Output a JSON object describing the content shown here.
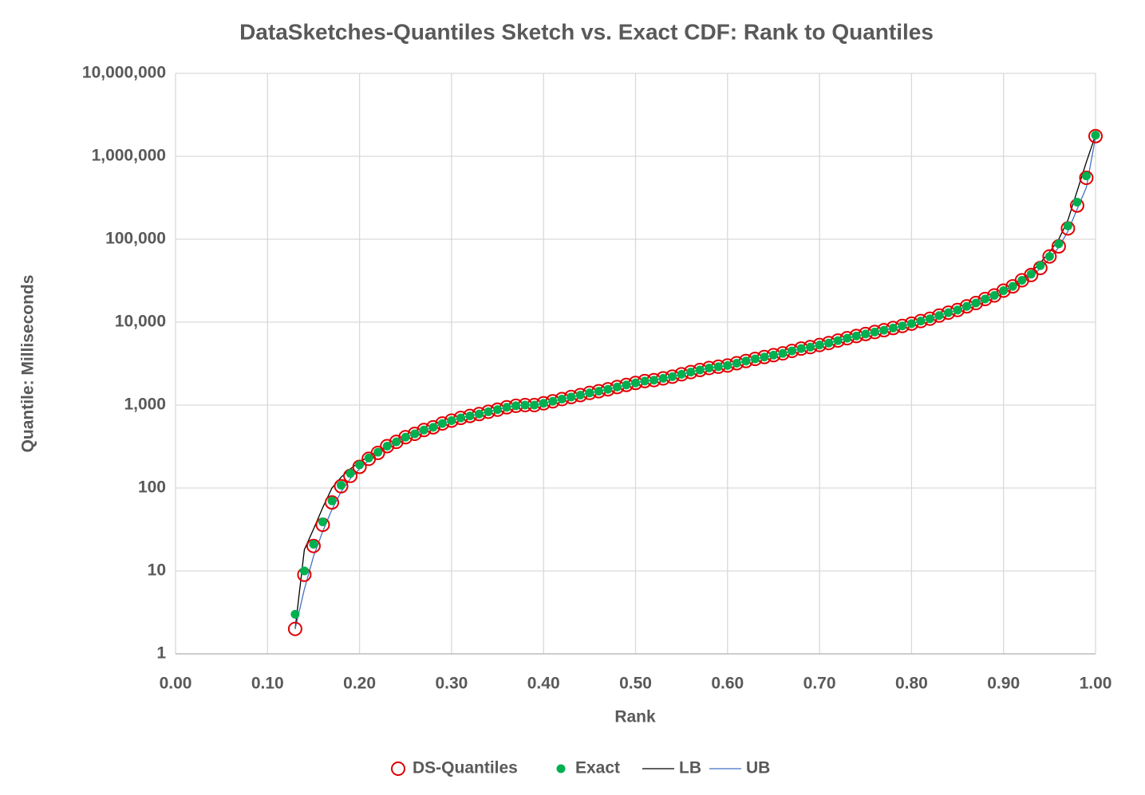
{
  "chart_data": {
    "type": "scatter",
    "title": "DataSketches-Quantiles Sketch vs. Exact CDF: Rank to Quantiles",
    "x_label": "Rank",
    "y_label": "Quantile: Milliseconds",
    "log_y": true,
    "grid": true,
    "legend": "bottom",
    "xlim": [
      0,
      1
    ],
    "ylim": [
      1,
      10000000
    ],
    "xticks": [
      {
        "value": 0,
        "label": "0.00"
      },
      {
        "value": 0.1,
        "label": "0.10"
      },
      {
        "value": 0.2,
        "label": "0.20"
      },
      {
        "value": 0.3,
        "label": "0.30"
      },
      {
        "value": 0.4,
        "label": "0.40"
      },
      {
        "value": 0.5,
        "label": "0.50"
      },
      {
        "value": 0.6,
        "label": "0.60"
      },
      {
        "value": 0.7,
        "label": "0.70"
      },
      {
        "value": 0.8,
        "label": "0.80"
      },
      {
        "value": 0.9,
        "label": "0.90"
      },
      {
        "value": 1,
        "label": "1.00"
      }
    ],
    "yticks": [
      1,
      10,
      100,
      {
        "value": 1000,
        "label": "1,000"
      },
      {
        "value": 10000,
        "label": "10,000"
      },
      {
        "value": 100000,
        "label": "100,000"
      },
      {
        "value": 1000000,
        "label": "1,000,000"
      },
      {
        "value": 10000000,
        "label": "10,000,000"
      }
    ],
    "x": [
      0.13,
      0.14,
      0.15,
      0.16,
      0.17,
      0.18,
      0.19,
      0.2,
      0.21,
      0.22,
      0.23,
      0.24,
      0.25,
      0.26,
      0.27,
      0.28,
      0.29,
      0.3,
      0.31,
      0.32,
      0.33,
      0.34,
      0.35,
      0.36,
      0.37,
      0.38,
      0.39,
      0.4,
      0.41,
      0.42,
      0.43,
      0.44,
      0.45,
      0.46,
      0.47,
      0.48,
      0.49,
      0.5,
      0.51,
      0.52,
      0.53,
      0.54,
      0.55,
      0.56,
      0.57,
      0.58,
      0.59,
      0.6,
      0.61,
      0.62,
      0.63,
      0.64,
      0.65,
      0.66,
      0.67,
      0.68,
      0.69,
      0.7,
      0.71,
      0.72,
      0.73,
      0.74,
      0.75,
      0.76,
      0.77,
      0.78,
      0.79,
      0.8,
      0.81,
      0.82,
      0.83,
      0.84,
      0.85,
      0.86,
      0.87,
      0.88,
      0.89,
      0.9,
      0.91,
      0.92,
      0.93,
      0.94,
      0.95,
      0.96,
      0.97,
      0.98,
      0.99,
      1.0
    ],
    "series": [
      {
        "name": "DS-Quantiles",
        "color": "#e00000",
        "marker": "hollow-circle",
        "values": [
          2,
          9,
          20,
          36,
          67,
          105,
          140,
          180,
          225,
          265,
          320,
          360,
          410,
          450,
          500,
          540,
          600,
          650,
          700,
          740,
          780,
          830,
          880,
          940,
          980,
          1000,
          1000,
          1050,
          1110,
          1180,
          1250,
          1320,
          1400,
          1470,
          1550,
          1650,
          1750,
          1850,
          1950,
          2000,
          2100,
          2200,
          2350,
          2500,
          2650,
          2800,
          2900,
          3000,
          3200,
          3400,
          3600,
          3800,
          4000,
          4200,
          4500,
          4800,
          5000,
          5300,
          5600,
          6000,
          6400,
          6800,
          7200,
          7600,
          8000,
          8500,
          9000,
          9600,
          10300,
          11000,
          12000,
          13000,
          14000,
          15500,
          17000,
          19000,
          21000,
          24000,
          27000,
          32000,
          37000,
          45000,
          62000,
          82000,
          135000,
          255000,
          550000,
          1750000
        ]
      },
      {
        "name": "Exact",
        "color": "#00b050",
        "marker": "dot",
        "values": [
          3,
          10,
          21,
          39,
          70,
          108,
          150,
          190,
          230,
          270,
          320,
          360,
          410,
          450,
          500,
          540,
          600,
          650,
          700,
          740,
          780,
          830,
          880,
          940,
          980,
          1000,
          1000,
          1050,
          1110,
          1180,
          1250,
          1320,
          1400,
          1470,
          1550,
          1650,
          1750,
          1850,
          1950,
          2000,
          2100,
          2200,
          2350,
          2500,
          2650,
          2800,
          2900,
          3000,
          3200,
          3400,
          3600,
          3800,
          4000,
          4200,
          4500,
          4800,
          5000,
          5300,
          5600,
          6000,
          6400,
          6800,
          7200,
          7600,
          8000,
          8500,
          9000,
          9600,
          10300,
          11000,
          12000,
          13000,
          14000,
          15500,
          17000,
          19000,
          21000,
          24000,
          27000,
          32000,
          38000,
          48000,
          62000,
          88000,
          145000,
          280000,
          580000,
          1800000
        ]
      },
      {
        "name": "LB",
        "color": "#000000",
        "marker": "line",
        "values": [
          2,
          18,
          32,
          58,
          100,
          135,
          170,
          205,
          240,
          280,
          320,
          360,
          410,
          450,
          500,
          540,
          600,
          650,
          700,
          740,
          780,
          830,
          880,
          940,
          980,
          1000,
          1000,
          1050,
          1110,
          1180,
          1250,
          1320,
          1400,
          1470,
          1550,
          1650,
          1750,
          1850,
          1950,
          2000,
          2100,
          2200,
          2350,
          2500,
          2650,
          2800,
          2900,
          3000,
          3200,
          3400,
          3600,
          3800,
          4000,
          4200,
          4500,
          4800,
          5000,
          5300,
          5600,
          6000,
          6400,
          6800,
          7200,
          7600,
          8000,
          8500,
          9000,
          9600,
          10300,
          11000,
          12000,
          13000,
          14000,
          15500,
          17000,
          19000,
          21000,
          24000,
          27000,
          32000,
          40000,
          52000,
          70000,
          100000,
          170000,
          380000,
          850000,
          1800000
        ]
      },
      {
        "name": "UB",
        "color": "#4472c4",
        "marker": "line",
        "values": [
          2,
          6,
          15,
          30,
          55,
          90,
          130,
          170,
          215,
          260,
          320,
          360,
          410,
          450,
          500,
          540,
          600,
          650,
          700,
          740,
          780,
          830,
          880,
          940,
          980,
          1000,
          1000,
          1050,
          1110,
          1180,
          1250,
          1320,
          1400,
          1470,
          1550,
          1650,
          1750,
          1850,
          1950,
          2000,
          2100,
          2200,
          2350,
          2500,
          2650,
          2800,
          2900,
          3000,
          3200,
          3400,
          3600,
          3800,
          4000,
          4200,
          4500,
          4800,
          5000,
          5300,
          5600,
          6000,
          6400,
          6800,
          7200,
          7600,
          8000,
          8500,
          9000,
          9600,
          10300,
          11000,
          12000,
          13000,
          14000,
          15500,
          17000,
          19000,
          21000,
          24000,
          27000,
          32000,
          36000,
          44000,
          58000,
          80000,
          125000,
          230000,
          420000,
          1700000
        ]
      }
    ]
  }
}
